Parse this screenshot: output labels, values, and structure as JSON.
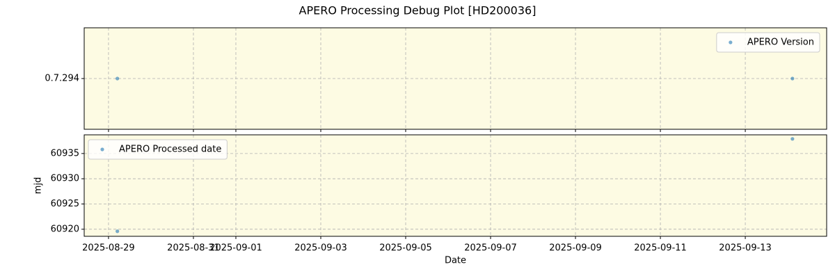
{
  "title": "APERO Processing Debug Plot [HD200036]",
  "chart_data": [
    {
      "type": "scatter",
      "y_scale": "categorical",
      "x": [
        "2025-08-29T05:00",
        "2025-09-14T02:40"
      ],
      "series": [
        {
          "name": "APERO Version",
          "color": "#1f77b4",
          "values": [
            "0.7.294",
            "0.7.294"
          ]
        }
      ],
      "ycategories": [
        "0.7.294"
      ],
      "xlim": [
        "2025-08-28T10:15",
        "2025-09-14T22:00"
      ],
      "xticks": [
        "2025-08-29",
        "2025-08-31",
        "2025-09-01",
        "2025-09-03",
        "2025-09-05",
        "2025-09-07",
        "2025-09-09",
        "2025-09-11",
        "2025-09-13"
      ],
      "xtick_labels_shown": false,
      "grid": true,
      "legend": "upper right",
      "background": "#fdfbe3"
    },
    {
      "type": "scatter",
      "y_scale": "linear",
      "x": [
        "2025-08-29T05:00",
        "2025-09-14T02:40"
      ],
      "series": [
        {
          "name": "APERO Processed date",
          "color": "#1f77b4",
          "values": [
            60919.6,
            60937.9
          ]
        }
      ],
      "xlabel": "Date",
      "ylabel": "mjd",
      "ylim": [
        60918.6,
        60938.7
      ],
      "yticks": [
        60920,
        60925,
        60930,
        60935
      ],
      "xlim": [
        "2025-08-28T10:15",
        "2025-09-14T22:00"
      ],
      "xticks": [
        "2025-08-29",
        "2025-08-31",
        "2025-09-01",
        "2025-09-03",
        "2025-09-05",
        "2025-09-07",
        "2025-09-09",
        "2025-09-11",
        "2025-09-13"
      ],
      "xtick_labels_shown": true,
      "grid": true,
      "legend": "upper left",
      "background": "#fdfbe3"
    }
  ]
}
